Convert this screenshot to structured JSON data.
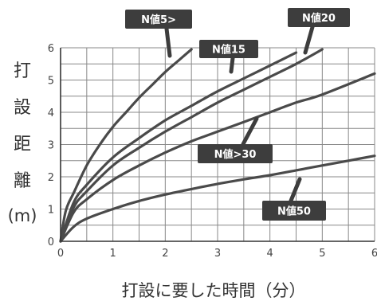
{
  "chart_data": {
    "type": "line",
    "xlabel": "打設に要した時間（分）",
    "ylabel_chars": [
      "打",
      "設",
      "距",
      "離"
    ],
    "ylabel_unit": "(m)",
    "xlim": [
      0,
      6
    ],
    "ylim": [
      0,
      6
    ],
    "x_ticks": [
      "0",
      "1",
      "2",
      "3",
      "4",
      "5",
      "6"
    ],
    "y_ticks": [
      "0",
      "1",
      "2",
      "3",
      "4",
      "5",
      "6"
    ],
    "grid": true,
    "legend": "inline labels",
    "series": [
      {
        "name": "N値5>",
        "x": [
          0,
          0.1,
          0.25,
          0.5,
          0.75,
          1,
          1.25,
          1.5,
          1.75,
          2,
          2.25,
          2.5
        ],
        "y": [
          0,
          0.95,
          1.5,
          2.35,
          3.0,
          3.55,
          4.0,
          4.45,
          4.85,
          5.25,
          5.6,
          5.95
        ]
      },
      {
        "name": "N値15",
        "x": [
          0,
          0.25,
          0.5,
          1,
          1.5,
          2,
          2.5,
          3,
          3.5,
          4,
          4.5
        ],
        "y": [
          0,
          1.2,
          1.75,
          2.6,
          3.2,
          3.75,
          4.2,
          4.65,
          5.05,
          5.45,
          5.85
        ]
      },
      {
        "name": "N値20",
        "x": [
          0,
          0.25,
          0.5,
          1,
          1.5,
          2,
          2.5,
          3,
          3.5,
          4,
          4.5,
          5
        ],
        "y": [
          0,
          1.05,
          1.55,
          2.35,
          2.9,
          3.4,
          3.85,
          4.3,
          4.7,
          5.1,
          5.5,
          5.95
        ]
      },
      {
        "name": "N値>30",
        "x": [
          0,
          0.25,
          0.5,
          1,
          1.5,
          2,
          2.5,
          3,
          3.5,
          4,
          4.5,
          5,
          6
        ],
        "y": [
          0,
          0.9,
          1.3,
          1.9,
          2.35,
          2.75,
          3.1,
          3.4,
          3.7,
          4.0,
          4.3,
          4.55,
          5.2
        ]
      },
      {
        "name": "N値50",
        "x": [
          0,
          0.25,
          0.5,
          1,
          1.5,
          2,
          2.5,
          3,
          3.5,
          4,
          4.5,
          5,
          5.5,
          6
        ],
        "y": [
          0,
          0.45,
          0.7,
          1.0,
          1.25,
          1.45,
          1.62,
          1.78,
          1.92,
          2.05,
          2.2,
          2.35,
          2.5,
          2.65
        ]
      }
    ]
  },
  "colors": {
    "line": "#4a4a4a",
    "grid": "#888888",
    "label_bg": "#3d3d3d",
    "label_text": "#ffffff"
  }
}
